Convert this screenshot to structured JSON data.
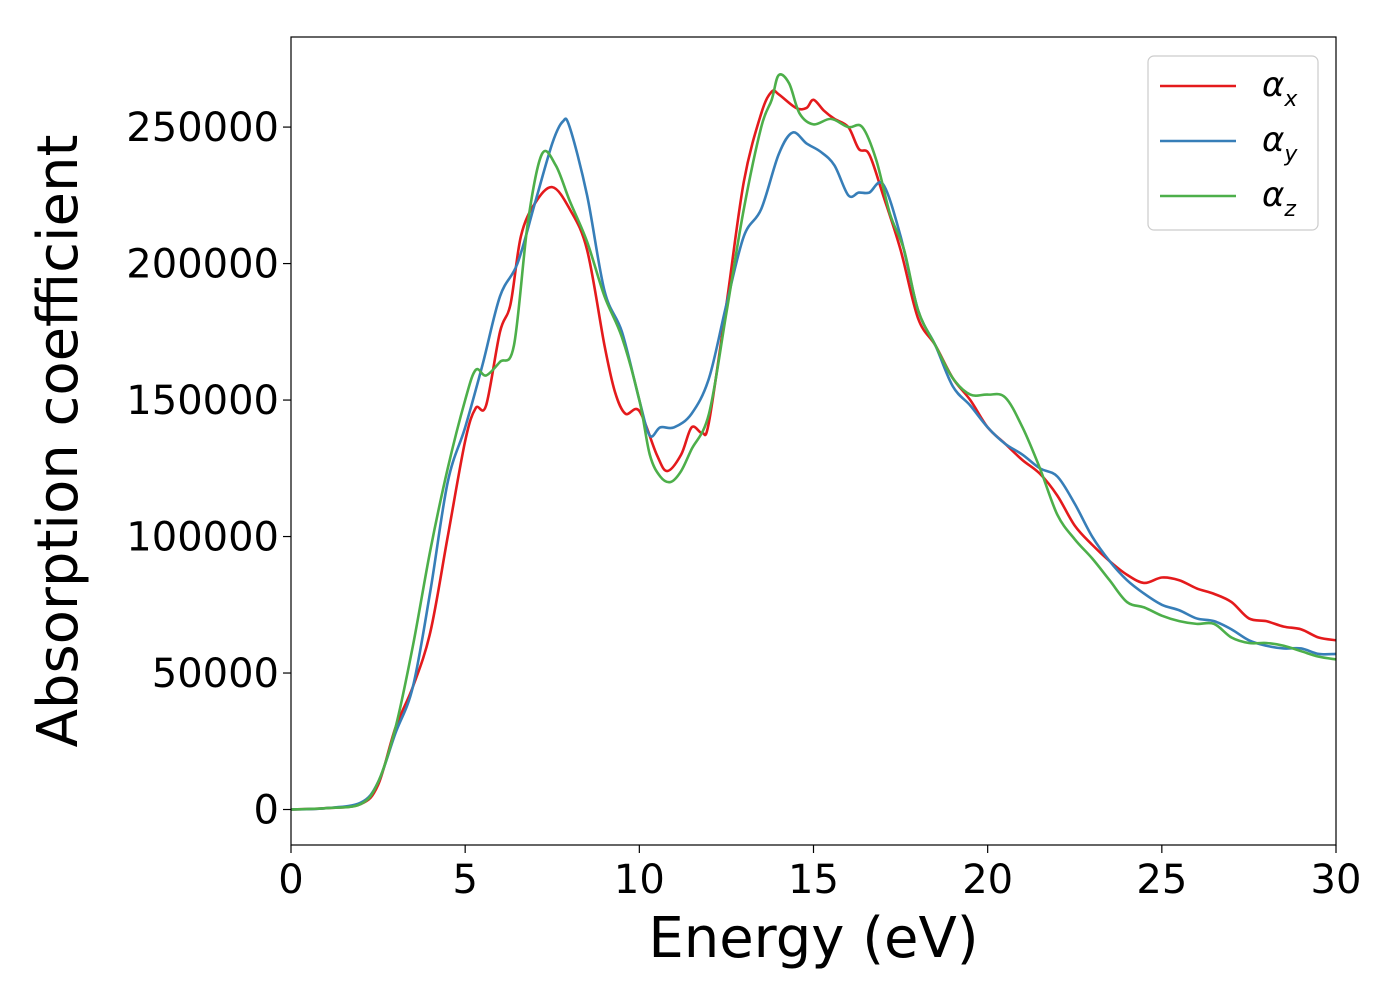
{
  "chart_data": {
    "type": "line",
    "title": "",
    "xlabel": "Energy (eV)",
    "ylabel": "Absorption coefficient",
    "xlim": [
      0,
      30
    ],
    "ylim": [
      -13000,
      283000
    ],
    "xticks": [
      0,
      5,
      10,
      15,
      20,
      25,
      30
    ],
    "xtick_labels": [
      "0",
      "5",
      "10",
      "15",
      "20",
      "25",
      "30"
    ],
    "yticks": [
      0,
      50000,
      100000,
      150000,
      200000,
      250000
    ],
    "ytick_labels": [
      "0",
      "50000",
      "100000",
      "150000",
      "200000",
      "250000"
    ],
    "grid": false,
    "legend_position": "top-right",
    "series": [
      {
        "name": "α_x",
        "legend_main": "α",
        "legend_sub": "x",
        "color": "#e41a1c",
        "points": [
          [
            0,
            0
          ],
          [
            1,
            500
          ],
          [
            2,
            2000
          ],
          [
            2.5,
            9000
          ],
          [
            3,
            30000
          ],
          [
            3.5,
            45000
          ],
          [
            4,
            65000
          ],
          [
            4.5,
            100000
          ],
          [
            5,
            135000
          ],
          [
            5.3,
            147000
          ],
          [
            5.6,
            148000
          ],
          [
            6,
            175000
          ],
          [
            6.3,
            185000
          ],
          [
            6.6,
            210000
          ],
          [
            7,
            222000
          ],
          [
            7.5,
            228000
          ],
          [
            8,
            220000
          ],
          [
            8.5,
            205000
          ],
          [
            9,
            170000
          ],
          [
            9.3,
            153000
          ],
          [
            9.6,
            145000
          ],
          [
            10,
            146000
          ],
          [
            10.5,
            130000
          ],
          [
            10.8,
            124000
          ],
          [
            11.2,
            130000
          ],
          [
            11.5,
            140000
          ],
          [
            11.8,
            138000
          ],
          [
            12,
            142000
          ],
          [
            12.5,
            185000
          ],
          [
            13,
            230000
          ],
          [
            13.5,
            255000
          ],
          [
            13.8,
            263000
          ],
          [
            14,
            262000
          ],
          [
            14.5,
            257000
          ],
          [
            14.8,
            257000
          ],
          [
            15,
            260000
          ],
          [
            15.3,
            256000
          ],
          [
            15.6,
            253000
          ],
          [
            16,
            250000
          ],
          [
            16.3,
            242000
          ],
          [
            16.6,
            240000
          ],
          [
            17,
            225000
          ],
          [
            17.5,
            205000
          ],
          [
            18,
            180000
          ],
          [
            18.5,
            170000
          ],
          [
            19,
            158000
          ],
          [
            19.5,
            150000
          ],
          [
            20,
            140000
          ],
          [
            20.5,
            134000
          ],
          [
            21,
            128000
          ],
          [
            21.5,
            123000
          ],
          [
            22,
            115000
          ],
          [
            22.5,
            104000
          ],
          [
            23,
            97000
          ],
          [
            23.5,
            91000
          ],
          [
            24,
            86000
          ],
          [
            24.5,
            83000
          ],
          [
            25,
            85000
          ],
          [
            25.5,
            84000
          ],
          [
            26,
            81000
          ],
          [
            26.5,
            79000
          ],
          [
            27,
            76000
          ],
          [
            27.5,
            70000
          ],
          [
            28,
            69000
          ],
          [
            28.5,
            67000
          ],
          [
            29,
            66000
          ],
          [
            29.5,
            63000
          ],
          [
            30,
            62000
          ]
        ]
      },
      {
        "name": "α_y",
        "legend_main": "α",
        "legend_sub": "y",
        "color": "#377eb8",
        "points": [
          [
            0,
            0
          ],
          [
            1,
            500
          ],
          [
            2,
            2500
          ],
          [
            2.5,
            10000
          ],
          [
            3,
            28000
          ],
          [
            3.5,
            45000
          ],
          [
            4,
            80000
          ],
          [
            4.5,
            120000
          ],
          [
            5,
            140000
          ],
          [
            5.5,
            163000
          ],
          [
            6,
            188000
          ],
          [
            6.5,
            200000
          ],
          [
            7,
            222000
          ],
          [
            7.5,
            244000
          ],
          [
            7.8,
            252000
          ],
          [
            8,
            250000
          ],
          [
            8.5,
            225000
          ],
          [
            9,
            190000
          ],
          [
            9.5,
            175000
          ],
          [
            10,
            150000
          ],
          [
            10.3,
            137000
          ],
          [
            10.6,
            140000
          ],
          [
            11,
            140000
          ],
          [
            11.5,
            145000
          ],
          [
            12,
            158000
          ],
          [
            12.5,
            185000
          ],
          [
            13,
            210000
          ],
          [
            13.5,
            220000
          ],
          [
            14,
            240000
          ],
          [
            14.4,
            248000
          ],
          [
            14.8,
            244000
          ],
          [
            15.2,
            241000
          ],
          [
            15.6,
            236000
          ],
          [
            16,
            225000
          ],
          [
            16.3,
            226000
          ],
          [
            16.6,
            226000
          ],
          [
            17,
            229000
          ],
          [
            17.5,
            210000
          ],
          [
            18,
            183000
          ],
          [
            18.5,
            170000
          ],
          [
            19,
            155000
          ],
          [
            19.5,
            148000
          ],
          [
            20,
            140000
          ],
          [
            20.5,
            134000
          ],
          [
            21,
            130000
          ],
          [
            21.5,
            125000
          ],
          [
            22,
            122000
          ],
          [
            22.5,
            112000
          ],
          [
            23,
            100000
          ],
          [
            23.5,
            91000
          ],
          [
            24,
            84000
          ],
          [
            24.5,
            79000
          ],
          [
            25,
            75000
          ],
          [
            25.5,
            73000
          ],
          [
            26,
            70000
          ],
          [
            26.5,
            69000
          ],
          [
            27,
            66000
          ],
          [
            27.5,
            62000
          ],
          [
            28,
            60000
          ],
          [
            28.5,
            59000
          ],
          [
            29,
            59000
          ],
          [
            29.5,
            57000
          ],
          [
            30,
            57000
          ]
        ]
      },
      {
        "name": "α_z",
        "legend_main": "α",
        "legend_sub": "z",
        "color": "#4daf4a",
        "points": [
          [
            0,
            0
          ],
          [
            1,
            500
          ],
          [
            2,
            2000
          ],
          [
            2.5,
            10000
          ],
          [
            3,
            30000
          ],
          [
            3.5,
            60000
          ],
          [
            4,
            95000
          ],
          [
            4.5,
            125000
          ],
          [
            5,
            150000
          ],
          [
            5.3,
            161000
          ],
          [
            5.6,
            159000
          ],
          [
            6,
            164000
          ],
          [
            6.4,
            170000
          ],
          [
            6.8,
            215000
          ],
          [
            7.2,
            240000
          ],
          [
            7.6,
            236000
          ],
          [
            8,
            223000
          ],
          [
            8.5,
            208000
          ],
          [
            9,
            188000
          ],
          [
            9.5,
            173000
          ],
          [
            10,
            150000
          ],
          [
            10.3,
            130000
          ],
          [
            10.6,
            122000
          ],
          [
            10.9,
            120000
          ],
          [
            11.2,
            124000
          ],
          [
            11.5,
            132000
          ],
          [
            12,
            145000
          ],
          [
            12.5,
            182000
          ],
          [
            13,
            220000
          ],
          [
            13.5,
            250000
          ],
          [
            13.8,
            260000
          ],
          [
            14,
            269000
          ],
          [
            14.3,
            266000
          ],
          [
            14.6,
            255000
          ],
          [
            15,
            251000
          ],
          [
            15.5,
            253000
          ],
          [
            16,
            250000
          ],
          [
            16.4,
            250000
          ],
          [
            16.8,
            238000
          ],
          [
            17.2,
            218000
          ],
          [
            17.6,
            205000
          ],
          [
            18,
            183000
          ],
          [
            18.5,
            170000
          ],
          [
            19,
            158000
          ],
          [
            19.5,
            152000
          ],
          [
            20,
            152000
          ],
          [
            20.5,
            151000
          ],
          [
            21,
            140000
          ],
          [
            21.5,
            125000
          ],
          [
            22,
            108000
          ],
          [
            22.5,
            99000
          ],
          [
            23,
            92000
          ],
          [
            23.5,
            84000
          ],
          [
            24,
            76000
          ],
          [
            24.5,
            74000
          ],
          [
            25,
            71000
          ],
          [
            25.5,
            69000
          ],
          [
            26,
            68000
          ],
          [
            26.5,
            68000
          ],
          [
            27,
            63000
          ],
          [
            27.5,
            61000
          ],
          [
            28,
            61000
          ],
          [
            28.5,
            60000
          ],
          [
            29,
            58000
          ],
          [
            29.5,
            56000
          ],
          [
            30,
            55000
          ]
        ]
      }
    ]
  }
}
